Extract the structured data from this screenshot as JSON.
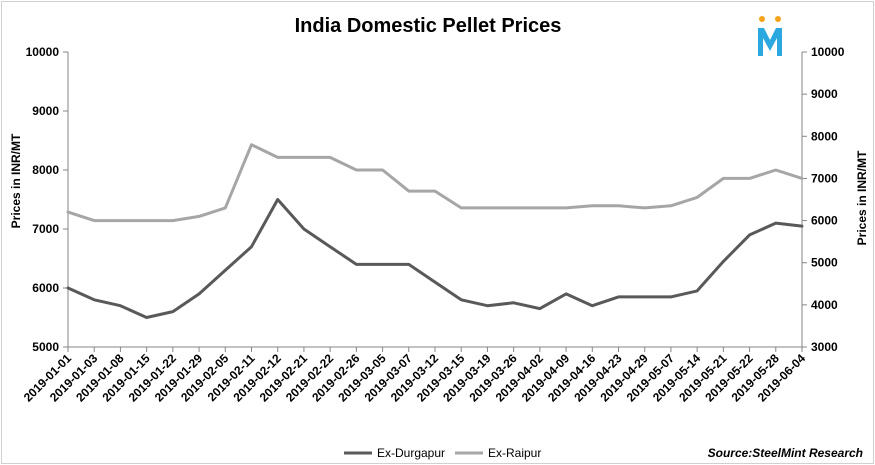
{
  "chart_data": {
    "type": "line",
    "title": "India Domestic Pellet Prices",
    "ylabel_left": "Prices in INR/MT",
    "ylabel_right": "Prices in INR/MT",
    "ylim_left": [
      5000,
      10000
    ],
    "ylim_right": [
      3000,
      10000
    ],
    "yticks_left": [
      "5000",
      "6000",
      "7000",
      "8000",
      "9000",
      "10000"
    ],
    "yticks_right": [
      "3000",
      "4000",
      "5000",
      "6000",
      "7000",
      "8000",
      "9000",
      "10000"
    ],
    "x": [
      "2019-01-01",
      "2019-01-03",
      "2019-01-08",
      "2019-01-15",
      "2019-01-22",
      "2019-01-29",
      "2019-02-05",
      "2019-02-11",
      "2019-02-12",
      "2019-02-21",
      "2019-02-22",
      "2019-02-26",
      "2019-03-05",
      "2019-03-07",
      "2019-03-12",
      "2019-03-15",
      "2019-03-19",
      "2019-03-26",
      "2019-04-02",
      "2019-04-09",
      "2019-04-16",
      "2019-04-23",
      "2019-04-29",
      "2019-05-07",
      "2019-05-14",
      "2019-05-21",
      "2019-05-22",
      "2019-05-28",
      "2019-06-04"
    ],
    "series": [
      {
        "name": "Ex-Durgapur",
        "axis": "left",
        "color": "#595959",
        "values": [
          6000,
          5800,
          5700,
          5500,
          5600,
          5900,
          6300,
          6700,
          7500,
          7000,
          6700,
          6400,
          6400,
          6400,
          6100,
          5800,
          5700,
          5750,
          5650,
          5900,
          5700,
          5850,
          5850,
          5850,
          5950,
          6450,
          6900,
          7100,
          7050
        ]
      },
      {
        "name": "Ex-Raipur",
        "axis": "right",
        "color": "#a6a6a6",
        "values": [
          6200,
          6000,
          6000,
          6000,
          6000,
          6100,
          6300,
          7800,
          7500,
          7500,
          7500,
          7200,
          7200,
          6700,
          6700,
          6300,
          6300,
          6300,
          6300,
          6300,
          6350,
          6350,
          6300,
          6350,
          6550,
          7000,
          7000,
          7200,
          7000
        ]
      }
    ],
    "grid": false,
    "legend": "bottom-center",
    "source": "Source:SteelMint Research"
  },
  "logo": {
    "letter": "M",
    "color": "#2ba8e0",
    "dot_color": "#f7a21b"
  }
}
